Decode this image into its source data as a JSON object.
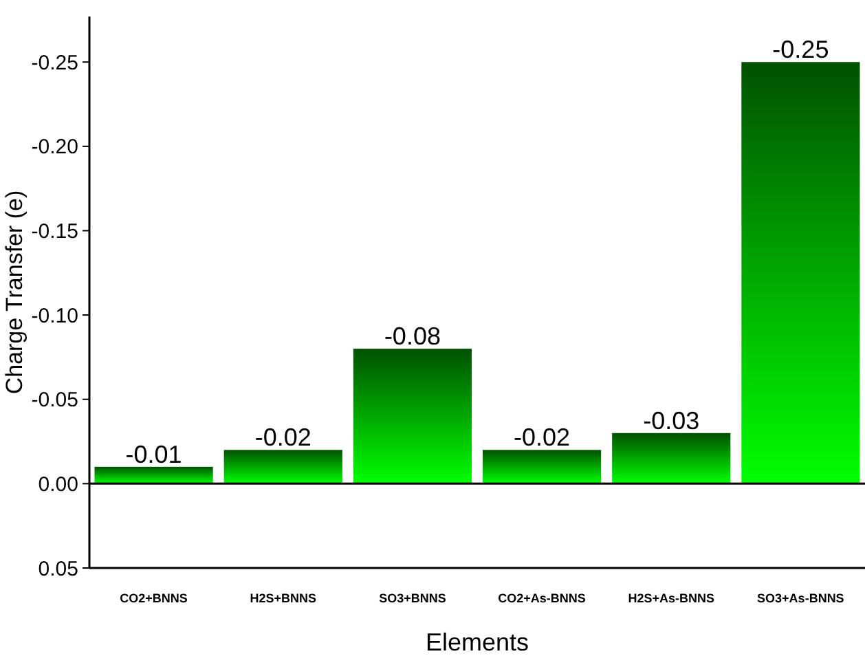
{
  "chart_data": {
    "type": "bar",
    "xlabel": "Elements",
    "ylabel": "Charge Transfer (e)",
    "categories": [
      "CO2+BNNS",
      "H2S+BNNS",
      "SO3+BNNS",
      "CO2+As-BNNS",
      "H2S+As-BNNS",
      "SO3+As-BNNS"
    ],
    "series": [
      {
        "color": "#00ff00",
        "values": [
          -0.01,
          -0.02,
          -0.08,
          -0.02,
          -0.03,
          -0.25
        ]
      }
    ],
    "ylim": [
      0.05,
      -0.277
    ],
    "yticks": [
      {
        "value": 0.05,
        "label": "0.05"
      },
      {
        "value": 0,
        "label": "0.00"
      },
      {
        "value": -0.05,
        "label": "-0.05"
      },
      {
        "value": -0.1,
        "label": "-0.10"
      },
      {
        "value": -0.15,
        "label": "-0.15"
      },
      {
        "value": -0.2,
        "label": "-0.20"
      },
      {
        "value": -0.25,
        "label": "-0.25"
      }
    ],
    "ref_lines": [
      {
        "axis": "y",
        "value": 0,
        "color": "#000000"
      }
    ],
    "data_labels": true,
    "grid": false
  }
}
